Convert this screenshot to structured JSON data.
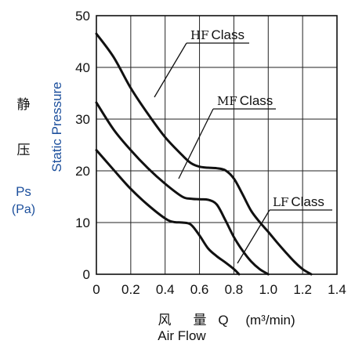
{
  "chart_data": {
    "type": "line",
    "ylabel": "Static Pressure",
    "ylabel_cn": [
      "静",
      "压"
    ],
    "ylabel_sym": "Ps",
    "ylabel_unit": "(Pa)",
    "xlabel_cn_1": "风",
    "xlabel_cn_2": "量",
    "xlabel_sym": "Q",
    "xlabel_unit": "(m³/min)",
    "xlabel": "Air Flow",
    "xlim": [
      0,
      1.4
    ],
    "ylim": [
      0,
      50
    ],
    "x_ticks": [
      "0",
      "0.2",
      "0.4",
      "0.6",
      "0.8",
      "1.0",
      "1.2",
      "1.4"
    ],
    "y_ticks": [
      "0",
      "10",
      "20",
      "30",
      "40",
      "50"
    ],
    "grid": true,
    "series": [
      {
        "name": "HF Class",
        "name_prefix": "HF",
        "name_suffix": "Class",
        "x": [
          0,
          0.1,
          0.2,
          0.3,
          0.4,
          0.5,
          0.55,
          0.6,
          0.65,
          0.7,
          0.75,
          0.8,
          0.85,
          0.9,
          0.95,
          1.0,
          1.05,
          1.1,
          1.15,
          1.2,
          1.25
        ],
        "y": [
          46.5,
          42,
          36,
          31,
          26.5,
          23,
          21.5,
          20.8,
          20.6,
          20.5,
          20.1,
          18.5,
          15.5,
          12.3,
          10.1,
          8.2,
          6.2,
          4.3,
          2.5,
          1.0,
          0
        ]
      },
      {
        "name": "MF Class",
        "name_prefix": "MF",
        "name_suffix": "Class",
        "x": [
          0,
          0.1,
          0.2,
          0.3,
          0.4,
          0.5,
          0.55,
          0.6,
          0.65,
          0.7,
          0.75,
          0.8,
          0.85,
          0.9,
          0.95,
          1.0
        ],
        "y": [
          33.2,
          28,
          24,
          20.5,
          17.5,
          15,
          14.6,
          14.5,
          14.4,
          13.5,
          10.5,
          7.2,
          4.6,
          2.5,
          1.0,
          0
        ]
      },
      {
        "name": "LF Class",
        "name_prefix": "LF",
        "name_suffix": "Class",
        "x": [
          0,
          0.1,
          0.2,
          0.3,
          0.4,
          0.45,
          0.5,
          0.55,
          0.6,
          0.65,
          0.7,
          0.75,
          0.8,
          0.83
        ],
        "y": [
          24,
          20.2,
          16.5,
          13.4,
          10.8,
          10.1,
          10.0,
          9.6,
          7.5,
          5.0,
          3.5,
          2.3,
          1.0,
          0
        ]
      }
    ]
  }
}
